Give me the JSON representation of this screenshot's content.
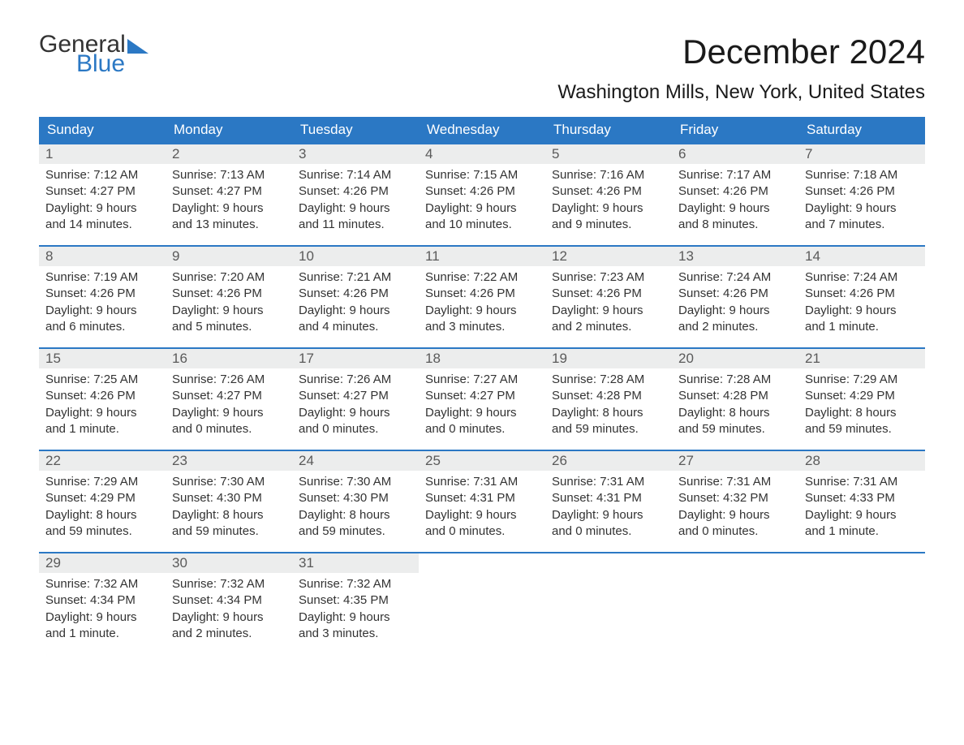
{
  "logo": {
    "line1": "General",
    "line2": "Blue"
  },
  "title": "December 2024",
  "location": "Washington Mills, New York, United States",
  "colors": {
    "header_bg": "#2b78c4",
    "header_text": "#ffffff",
    "daynum_bg": "#eceded",
    "row_border": "#2b78c4",
    "text": "#333333",
    "logo_accent": "#2b78c4"
  },
  "day_names": [
    "Sunday",
    "Monday",
    "Tuesday",
    "Wednesday",
    "Thursday",
    "Friday",
    "Saturday"
  ],
  "weeks": [
    [
      {
        "n": "1",
        "sr": "Sunrise: 7:12 AM",
        "ss": "Sunset: 4:27 PM",
        "d1": "Daylight: 9 hours",
        "d2": "and 14 minutes."
      },
      {
        "n": "2",
        "sr": "Sunrise: 7:13 AM",
        "ss": "Sunset: 4:27 PM",
        "d1": "Daylight: 9 hours",
        "d2": "and 13 minutes."
      },
      {
        "n": "3",
        "sr": "Sunrise: 7:14 AM",
        "ss": "Sunset: 4:26 PM",
        "d1": "Daylight: 9 hours",
        "d2": "and 11 minutes."
      },
      {
        "n": "4",
        "sr": "Sunrise: 7:15 AM",
        "ss": "Sunset: 4:26 PM",
        "d1": "Daylight: 9 hours",
        "d2": "and 10 minutes."
      },
      {
        "n": "5",
        "sr": "Sunrise: 7:16 AM",
        "ss": "Sunset: 4:26 PM",
        "d1": "Daylight: 9 hours",
        "d2": "and 9 minutes."
      },
      {
        "n": "6",
        "sr": "Sunrise: 7:17 AM",
        "ss": "Sunset: 4:26 PM",
        "d1": "Daylight: 9 hours",
        "d2": "and 8 minutes."
      },
      {
        "n": "7",
        "sr": "Sunrise: 7:18 AM",
        "ss": "Sunset: 4:26 PM",
        "d1": "Daylight: 9 hours",
        "d2": "and 7 minutes."
      }
    ],
    [
      {
        "n": "8",
        "sr": "Sunrise: 7:19 AM",
        "ss": "Sunset: 4:26 PM",
        "d1": "Daylight: 9 hours",
        "d2": "and 6 minutes."
      },
      {
        "n": "9",
        "sr": "Sunrise: 7:20 AM",
        "ss": "Sunset: 4:26 PM",
        "d1": "Daylight: 9 hours",
        "d2": "and 5 minutes."
      },
      {
        "n": "10",
        "sr": "Sunrise: 7:21 AM",
        "ss": "Sunset: 4:26 PM",
        "d1": "Daylight: 9 hours",
        "d2": "and 4 minutes."
      },
      {
        "n": "11",
        "sr": "Sunrise: 7:22 AM",
        "ss": "Sunset: 4:26 PM",
        "d1": "Daylight: 9 hours",
        "d2": "and 3 minutes."
      },
      {
        "n": "12",
        "sr": "Sunrise: 7:23 AM",
        "ss": "Sunset: 4:26 PM",
        "d1": "Daylight: 9 hours",
        "d2": "and 2 minutes."
      },
      {
        "n": "13",
        "sr": "Sunrise: 7:24 AM",
        "ss": "Sunset: 4:26 PM",
        "d1": "Daylight: 9 hours",
        "d2": "and 2 minutes."
      },
      {
        "n": "14",
        "sr": "Sunrise: 7:24 AM",
        "ss": "Sunset: 4:26 PM",
        "d1": "Daylight: 9 hours",
        "d2": "and 1 minute."
      }
    ],
    [
      {
        "n": "15",
        "sr": "Sunrise: 7:25 AM",
        "ss": "Sunset: 4:26 PM",
        "d1": "Daylight: 9 hours",
        "d2": "and 1 minute."
      },
      {
        "n": "16",
        "sr": "Sunrise: 7:26 AM",
        "ss": "Sunset: 4:27 PM",
        "d1": "Daylight: 9 hours",
        "d2": "and 0 minutes."
      },
      {
        "n": "17",
        "sr": "Sunrise: 7:26 AM",
        "ss": "Sunset: 4:27 PM",
        "d1": "Daylight: 9 hours",
        "d2": "and 0 minutes."
      },
      {
        "n": "18",
        "sr": "Sunrise: 7:27 AM",
        "ss": "Sunset: 4:27 PM",
        "d1": "Daylight: 9 hours",
        "d2": "and 0 minutes."
      },
      {
        "n": "19",
        "sr": "Sunrise: 7:28 AM",
        "ss": "Sunset: 4:28 PM",
        "d1": "Daylight: 8 hours",
        "d2": "and 59 minutes."
      },
      {
        "n": "20",
        "sr": "Sunrise: 7:28 AM",
        "ss": "Sunset: 4:28 PM",
        "d1": "Daylight: 8 hours",
        "d2": "and 59 minutes."
      },
      {
        "n": "21",
        "sr": "Sunrise: 7:29 AM",
        "ss": "Sunset: 4:29 PM",
        "d1": "Daylight: 8 hours",
        "d2": "and 59 minutes."
      }
    ],
    [
      {
        "n": "22",
        "sr": "Sunrise: 7:29 AM",
        "ss": "Sunset: 4:29 PM",
        "d1": "Daylight: 8 hours",
        "d2": "and 59 minutes."
      },
      {
        "n": "23",
        "sr": "Sunrise: 7:30 AM",
        "ss": "Sunset: 4:30 PM",
        "d1": "Daylight: 8 hours",
        "d2": "and 59 minutes."
      },
      {
        "n": "24",
        "sr": "Sunrise: 7:30 AM",
        "ss": "Sunset: 4:30 PM",
        "d1": "Daylight: 8 hours",
        "d2": "and 59 minutes."
      },
      {
        "n": "25",
        "sr": "Sunrise: 7:31 AM",
        "ss": "Sunset: 4:31 PM",
        "d1": "Daylight: 9 hours",
        "d2": "and 0 minutes."
      },
      {
        "n": "26",
        "sr": "Sunrise: 7:31 AM",
        "ss": "Sunset: 4:31 PM",
        "d1": "Daylight: 9 hours",
        "d2": "and 0 minutes."
      },
      {
        "n": "27",
        "sr": "Sunrise: 7:31 AM",
        "ss": "Sunset: 4:32 PM",
        "d1": "Daylight: 9 hours",
        "d2": "and 0 minutes."
      },
      {
        "n": "28",
        "sr": "Sunrise: 7:31 AM",
        "ss": "Sunset: 4:33 PM",
        "d1": "Daylight: 9 hours",
        "d2": "and 1 minute."
      }
    ],
    [
      {
        "n": "29",
        "sr": "Sunrise: 7:32 AM",
        "ss": "Sunset: 4:34 PM",
        "d1": "Daylight: 9 hours",
        "d2": "and 1 minute."
      },
      {
        "n": "30",
        "sr": "Sunrise: 7:32 AM",
        "ss": "Sunset: 4:34 PM",
        "d1": "Daylight: 9 hours",
        "d2": "and 2 minutes."
      },
      {
        "n": "31",
        "sr": "Sunrise: 7:32 AM",
        "ss": "Sunset: 4:35 PM",
        "d1": "Daylight: 9 hours",
        "d2": "and 3 minutes."
      },
      null,
      null,
      null,
      null
    ]
  ]
}
